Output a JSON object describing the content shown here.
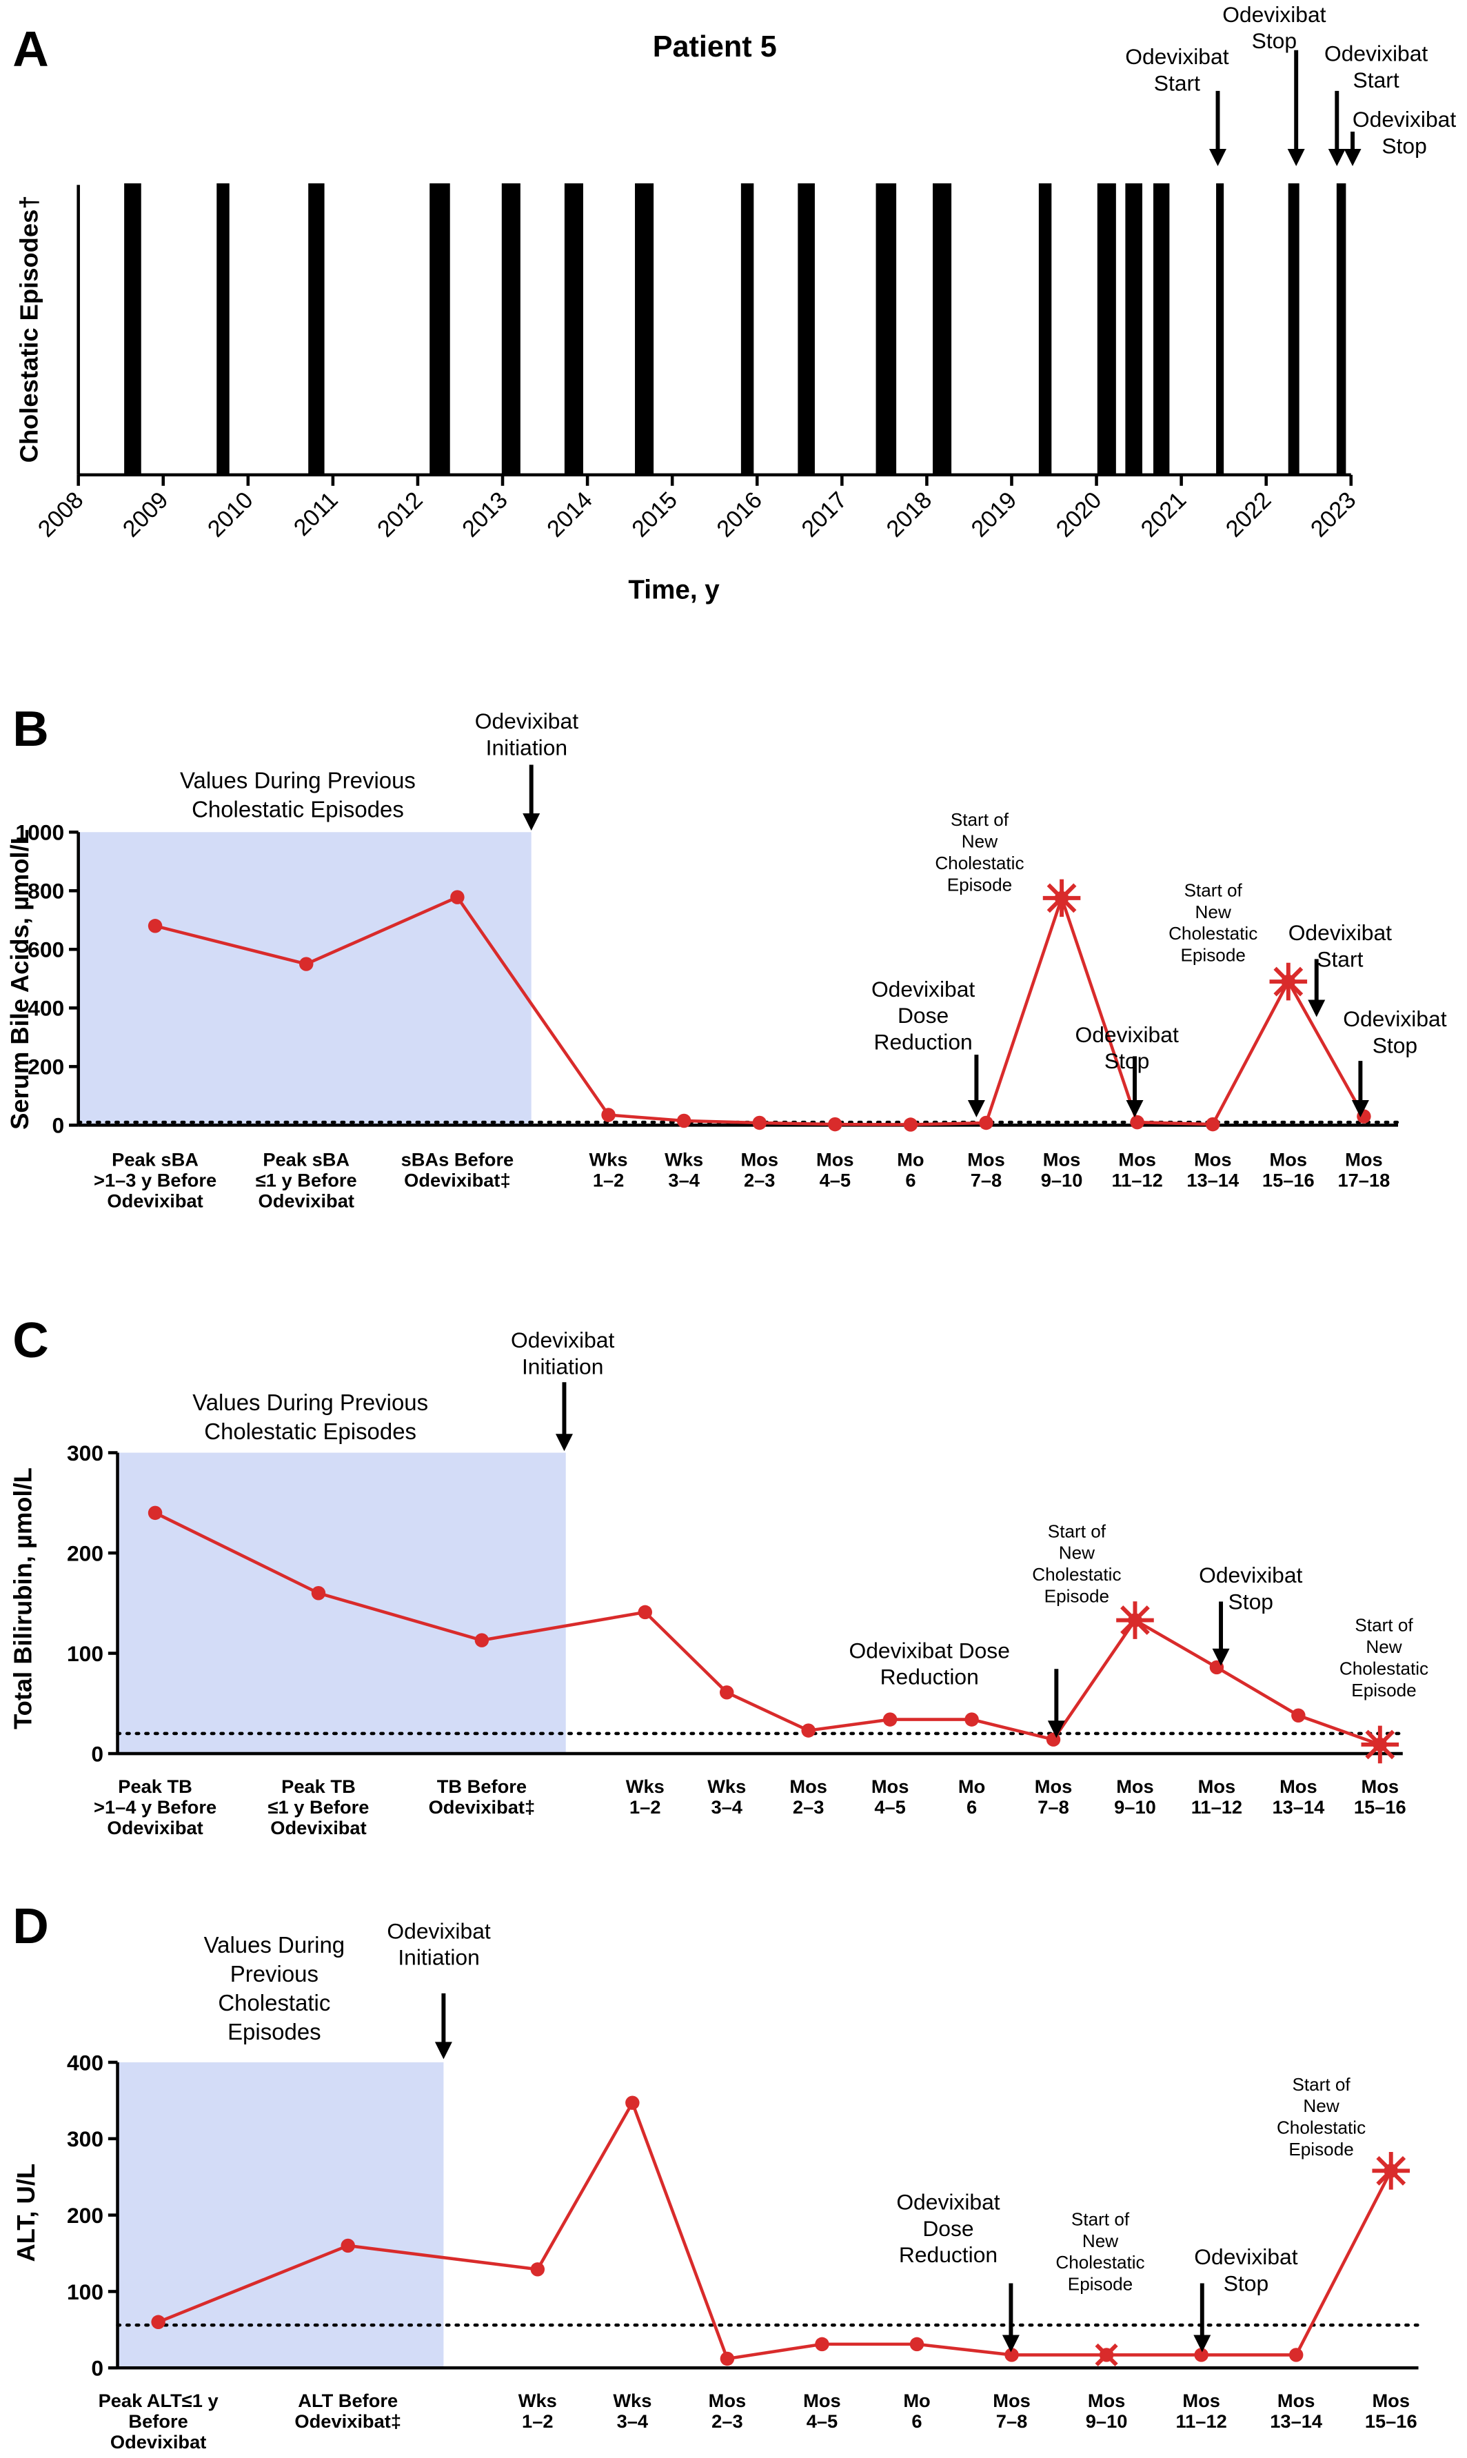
{
  "chart_data": [
    {
      "type": "timeline",
      "panel": "A",
      "title": "Patient 5",
      "y_label": "Cholestatic Episodes†",
      "x_label": "Time, y",
      "xlim": [
        2008,
        2023
      ],
      "xticks": [
        2008,
        2009,
        2010,
        2011,
        2012,
        2013,
        2014,
        2015,
        2016,
        2017,
        2018,
        2019,
        2020,
        2021,
        2022,
        2023
      ],
      "color": "#000000",
      "episodes": [
        [
          2008.54,
          2008.74
        ],
        [
          2009.63,
          2009.78
        ],
        [
          2010.71,
          2010.9
        ],
        [
          2012.14,
          2012.38
        ],
        [
          2012.99,
          2013.21
        ],
        [
          2013.73,
          2013.95
        ],
        [
          2014.56,
          2014.78
        ],
        [
          2015.81,
          2015.96
        ],
        [
          2016.48,
          2016.68
        ],
        [
          2017.4,
          2017.64
        ],
        [
          2018.07,
          2018.29
        ],
        [
          2019.32,
          2019.47
        ],
        [
          2020.01,
          2020.23
        ],
        [
          2020.34,
          2020.54
        ],
        [
          2020.67,
          2020.86
        ],
        [
          2021.41,
          2021.5
        ],
        [
          2022.26,
          2022.39
        ],
        [
          2022.83,
          2022.94
        ]
      ],
      "annotations": [
        "Odevixibat\nStart",
        "Odevixibat\nStop",
        "Odevixibat\nStart",
        "Odevixibat\nStop"
      ]
    },
    {
      "type": "line",
      "panel": "B",
      "y_label": "Serum Bile Acids, µmol/L",
      "ylim": [
        0,
        1000
      ],
      "yticks": [
        0,
        200,
        400,
        600,
        800,
        1000
      ],
      "color": "#d92b2b",
      "shade_color": "#d3dcf7",
      "reference_line": 10,
      "shaded_label": "Values During Previous\nCholestatic Episodes",
      "before": {
        "categories": [
          "Peak sBA\n>1–3 y Before\nOdevixibat",
          "Peak sBA\n≤1 y Before\nOdevixibat",
          "sBAs Before\nOdevixibat‡"
        ],
        "values": [
          680,
          550,
          778
        ]
      },
      "after": {
        "categories": [
          "Wks\n1–2",
          "Wks\n3–4",
          "Mos\n2–3",
          "Mos\n4–5",
          "Mo\n6",
          "Mos\n7–8",
          "Mos\n9–10",
          "Mos\n11–12",
          "Mos\n13–14",
          "Mos\n15–16",
          "Mos\n17–18"
        ],
        "values": [
          35,
          15,
          8,
          3,
          2,
          8,
          775,
          10,
          3,
          490,
          30
        ]
      },
      "annotations": [
        "Odevixibat\nInitiation",
        "Start of\nNew\nCholestatic\nEpisode",
        "Odevixibat\nDose\nReduction",
        "Odevixibat\nStop",
        "Start of\nNew\nCholestatic\nEpisode",
        "Odevixibat\nStart",
        "Odevixibat\nStop"
      ]
    },
    {
      "type": "line",
      "panel": "C",
      "y_label": "Total Bilirubin, µmol/L",
      "ylim": [
        0,
        300
      ],
      "yticks": [
        0,
        100,
        200,
        300
      ],
      "color": "#d92b2b",
      "shade_color": "#d3dcf7",
      "reference_line": 20,
      "shaded_label": "Values During Previous\nCholestatic Episodes",
      "before": {
        "categories": [
          "Peak TB\n>1–4 y Before\nOdevixibat",
          "Peak TB\n≤1 y Before\nOdevixibat",
          "TB Before\nOdevixibat‡"
        ],
        "values": [
          240,
          160,
          113
        ]
      },
      "after": {
        "categories": [
          "Wks\n1–2",
          "Wks\n3–4",
          "Mos\n2–3",
          "Mos\n4–5",
          "Mo\n6",
          "Mos\n7–8",
          "Mos\n9–10",
          "Mos\n11–12",
          "Mos\n13–14",
          "Mos\n15–16"
        ],
        "values": [
          141,
          61,
          23,
          34,
          34,
          14,
          133,
          86,
          38,
          9
        ]
      },
      "annotations": [
        "Odevixibat\nInitiation",
        "Odevixibat Dose\nReduction",
        "Start of\nNew\nCholestatic\nEpisode",
        "Odevixibat\nStop",
        "Start of\nNew\nCholestatic\nEpisode"
      ]
    },
    {
      "type": "line",
      "panel": "D",
      "y_label": "ALT, U/L",
      "ylim": [
        0,
        400
      ],
      "yticks": [
        0,
        100,
        200,
        300,
        400
      ],
      "color": "#d92b2b",
      "shade_color": "#d3dcf7",
      "reference_line": 56,
      "shaded_label": "Values During\nPrevious\nCholestatic\nEpisodes",
      "before": {
        "categories": [
          "Peak ALT≤1 y\nBefore\nOdevixibat",
          "ALT Before\nOdevixibat‡"
        ],
        "values": [
          60,
          160
        ]
      },
      "after": {
        "categories": [
          "Wks\n1–2",
          "Wks\n3–4",
          "Mos\n2–3",
          "Mos\n4–5",
          "Mo\n6",
          "Mos\n7–8",
          "Mos\n9–10",
          "Mos\n11–12",
          "Mos\n13–14",
          "Mos\n15–16"
        ],
        "values": [
          129,
          347,
          12,
          31,
          31,
          17,
          17,
          17,
          17,
          258
        ]
      },
      "annotations": [
        "Odevixibat\nInitiation",
        "Odevixibat\nDose\nReduction",
        "Start of\nNew\nCholestatic\nEpisode",
        "Odevixibat\nStop",
        "Start of\nNew\nCholestatic\nEpisode"
      ]
    }
  ]
}
